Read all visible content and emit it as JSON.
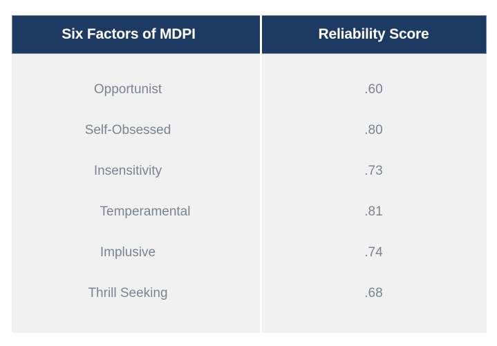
{
  "table": {
    "columns": [
      {
        "label": "Six Factors of MDPI"
      },
      {
        "label": "Reliability Score"
      }
    ],
    "rows": [
      {
        "factor": "Opportunist",
        "score": ".60"
      },
      {
        "factor": "Self-Obsessed",
        "score": ".80"
      },
      {
        "factor": "Insensitivity",
        "score": ".73"
      },
      {
        "factor": "Temperamental",
        "score": ".81"
      },
      {
        "factor": "Implusive",
        "score": ".74"
      },
      {
        "factor": "Thrill Seeking",
        "score": ".68"
      }
    ]
  },
  "chart_data": {
    "type": "table",
    "title": "",
    "columns": [
      "Six Factors of MDPI",
      "Reliability Score"
    ],
    "categories": [
      "Opportunist",
      "Self-Obsessed",
      "Insensitivity",
      "Temperamental",
      "Implusive",
      "Thrill Seeking"
    ],
    "values": [
      0.6,
      0.8,
      0.73,
      0.81,
      0.74,
      0.68
    ]
  },
  "colors": {
    "header_bg": "#1d3a63",
    "header_text": "#ffffff",
    "body_bg": "#f1f1f2",
    "body_text": "#7b8391",
    "divider": "#fafafa",
    "page_bg": "#ffffff"
  }
}
